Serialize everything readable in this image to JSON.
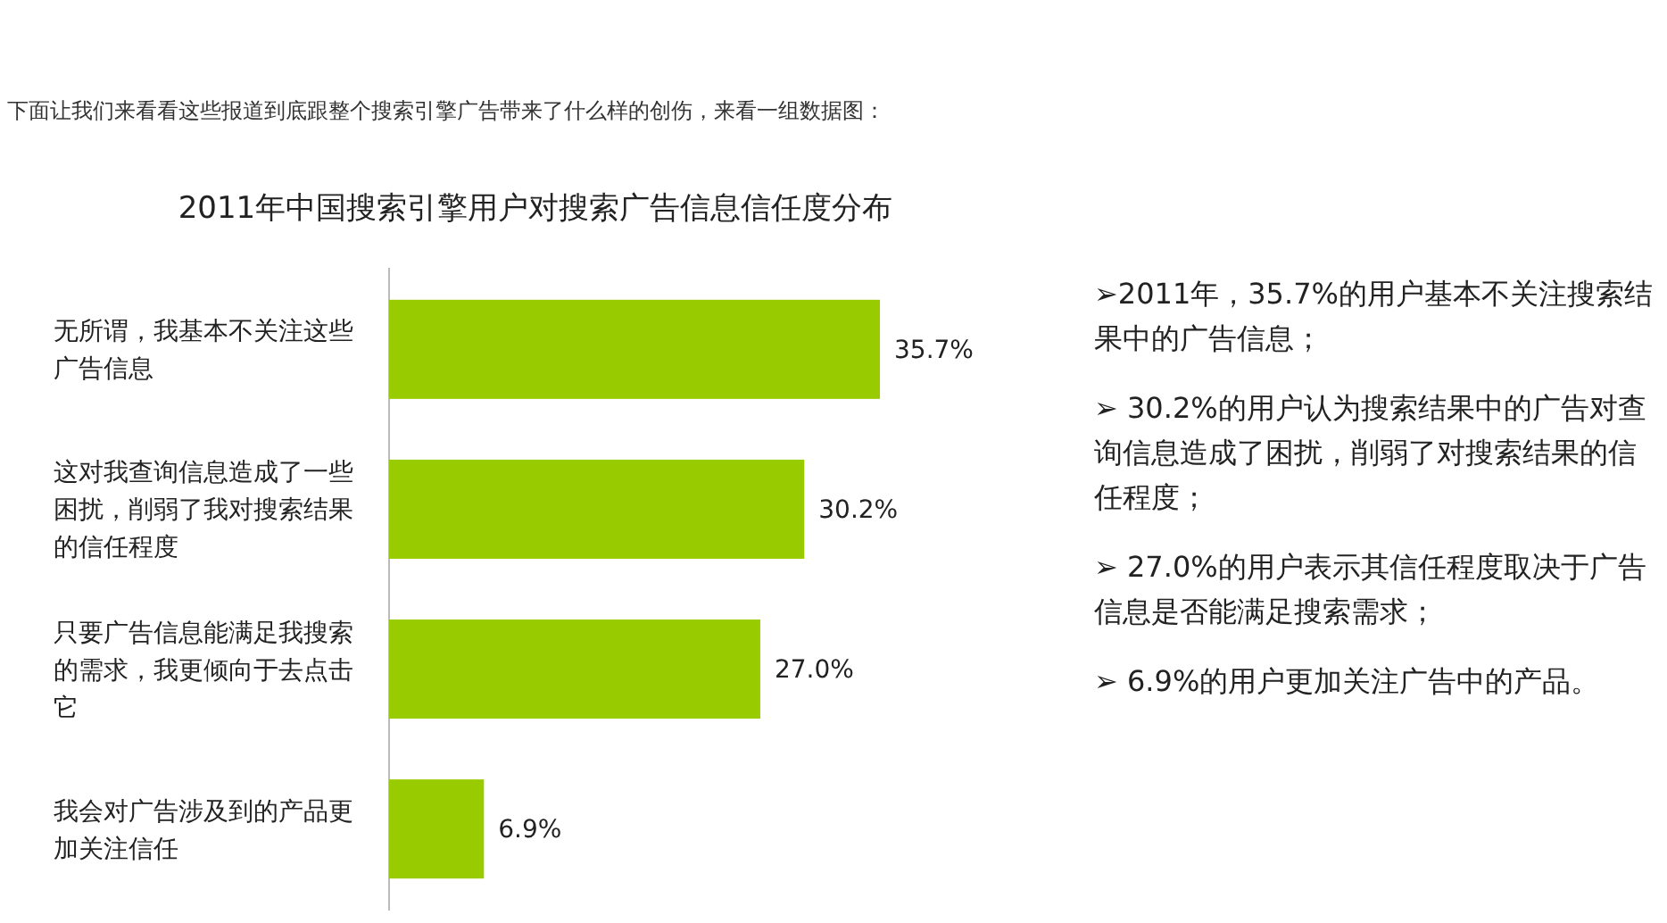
{
  "chart_data": {
    "type": "bar",
    "orientation": "horizontal",
    "title": "2011年中国搜索引擎用户对搜索广告信息信任度分布",
    "subtitle": "下面让我们来看看这些报道到底跟整个搜索引擎广告带来了什么样的创伤，来看一组数据图：",
    "categories": [
      "无所谓，我基本不关注这些广告信息",
      "这对我查询信息造成了一些困扰，削弱了我对搜索结果的信任程度",
      "只要广告信息能满足我搜索的需求，我更倾向于去点击它",
      "我会对广告涉及到的产品更加关注信任"
    ],
    "values": [
      35.7,
      30.2,
      27.0,
      6.9
    ],
    "value_labels": [
      "35.7%",
      "30.2%",
      "27.0%",
      "6.9%"
    ],
    "color": "#99cc00",
    "annotations": [
      "➢2011年，35.7%的用户基本不关注搜索结果中的广告信息；",
      "➢ 30.2%的用户认为搜索结果中的广告对查询信息造成了困扰，削弱了对搜索结果的信任程度；",
      "➢ 27.0%的用户表示其信任程度取决于广告信息是否能满足搜索需求；",
      "➢ 6.9%的用户更加关注广告中的产品。"
    ]
  }
}
